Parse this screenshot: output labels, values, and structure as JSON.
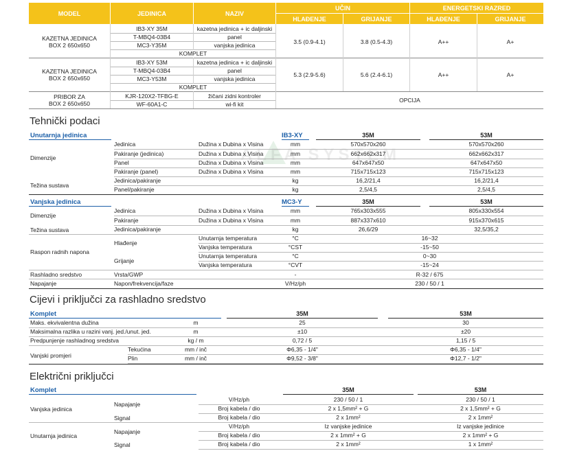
{
  "top": {
    "headers": {
      "model": "MODEL",
      "jedinica": "JEDINICA",
      "naziv": "NAZIV",
      "ucin": "UČIN",
      "energetski": "ENERGETSKI RAZRED",
      "hladenje": "HLAĐENJE",
      "grijanje": "GRIJANJE",
      "e_hladenje": "HLAĐENJE",
      "e_grijanje": "GRIJANJE"
    },
    "rows": [
      {
        "model1": "KAZETNA JEDINICA",
        "model2": "BOX 2 650x650",
        "units": [
          "IB3-XY 35M",
          "T-MBQ4-03B4",
          "MC3-Y35M"
        ],
        "names": [
          "kazetna jedinica + ic daljinski",
          "panel",
          "vanjska jedinica"
        ],
        "cool": "3.5 (0.9-4.1)",
        "heat": "3.8 (0.5-4.3)",
        "ecool": "A++",
        "eheat": "A+",
        "komplet": "KOMPLET"
      },
      {
        "model1": "KAZETNA JEDINICA",
        "model2": "BOX 2 650x650",
        "units": [
          "IB3-XY 53M",
          "T-MBQ4-03B4",
          "MC3-Y53M"
        ],
        "names": [
          "kazetna jedinica + ic daljinski",
          "panel",
          "vanjska jedinica"
        ],
        "cool": "5.3 (2.9-5.6)",
        "heat": "5.6 (2.4-6.1)",
        "ecool": "A++",
        "eheat": "A+",
        "komplet": "KOMPLET"
      }
    ],
    "pribor": {
      "l1": "PRIBOR ZA",
      "l2": "BOX 2 650x650",
      "u1": "KJR-120X2-TFBG-E",
      "u2": "WF-60A1-C",
      "n1": "žičani zidni kontroler",
      "n2": "wi-fi kit",
      "opt": "OPCIJA"
    }
  },
  "tech": {
    "title": "Tehnički podaci",
    "indoor": {
      "label": "Unutarnja jedinica",
      "model": "IB3-XY",
      "c35": "35M",
      "c53": "53M",
      "dim": "Dimenzije",
      "tez": "Težina sustava",
      "rows": [
        {
          "a": "Jedinica",
          "b": "Dužina x Dubina x Visina",
          "u": "mm",
          "v35": "570x570x260",
          "v53": "570x570x260"
        },
        {
          "a": "Pakiranje (jedinica)",
          "b": "Dužina x Dubina x Visina",
          "u": "mm",
          "v35": "662x662x317",
          "v53": "662x662x317"
        },
        {
          "a": "Panel",
          "b": "Dužina x Dubina x Visina",
          "u": "mm",
          "v35": "647x647x50",
          "v53": "647x647x50"
        },
        {
          "a": "Pakiranje (panel)",
          "b": "Dužina x Dubina x Visina",
          "u": "mm",
          "v35": "715x715x123",
          "v53": "715x715x123"
        },
        {
          "a": "Jedinica/pakiranje",
          "b": "",
          "u": "kg",
          "v35": "16,2/21,4",
          "v53": "16,2/21,4"
        },
        {
          "a": "Panel/pakiranje",
          "b": "",
          "u": "kg",
          "v35": "2,5/4,5",
          "v53": "2,5/4,5"
        }
      ]
    },
    "outdoor": {
      "label": "Vanjska jedinica",
      "model": "MC3-Y",
      "c35": "35M",
      "c53": "53M",
      "dim": "Dimenzije",
      "tez": "Težina sustava",
      "raspon": "Raspon radnih napona",
      "hl": "Hlađenje",
      "gr": "Grijanje",
      "rash": "Rashladno sredstvo",
      "nap": "Napajanje",
      "rows": [
        {
          "a": "Jedinica",
          "b": "Dužina x Dubina x Visina",
          "u": "mm",
          "v35": "765x303x555",
          "v53": "805x330x554"
        },
        {
          "a": "Pakiranje",
          "b": "Dužina x Dubina x Visina",
          "u": "mm",
          "v35": "887x337x610",
          "v53": "915x370x615"
        },
        {
          "a": "Jedinica/pakiranje",
          "b": "",
          "u": "kg",
          "v35": "26,6/29",
          "v53": "32,5/35,2"
        }
      ],
      "ranges": [
        {
          "b": "Unutarnja temperatura",
          "u": "°C",
          "v": "16~32"
        },
        {
          "b": "Vanjska temperatura",
          "u": "°CST",
          "v": "-15~50"
        },
        {
          "b": "Unutarnja temperatura",
          "u": "°C",
          "v": "0~30"
        },
        {
          "b": "Vanjska temperatura",
          "u": "°CVT",
          "v": "-15~24"
        }
      ],
      "rash_a": "Vrsta/GWP",
      "rash_u": "-",
      "rash_v": "R-32 / 675",
      "nap_a": "Napon/frekvencija/faze",
      "nap_u": "V/Hz/ph",
      "nap_v": "230 / 50 / 1"
    }
  },
  "pipes": {
    "title": "Cijevi i priključci za rashladno sredstvo",
    "label": "Komplet",
    "c35": "35M",
    "c53": "53M",
    "rows": [
      {
        "a": "Maks. ekvivalentna dužina",
        "s": "",
        "u": "m",
        "v35": "25",
        "v53": "30"
      },
      {
        "a": "Maksimalna razlika u razini vanj. jed./unut. jed.",
        "s": "",
        "u": "m",
        "v35": "±10",
        "v53": "±20"
      },
      {
        "a": "Predpunjenje rashladnog sredstva",
        "s": "",
        "u": "kg / m",
        "v35": "0,72 / 5",
        "v53": "1,15 / 5"
      },
      {
        "a": "",
        "s": "Tekućina",
        "u": "mm / inč",
        "v35": "Φ6,35 - 1/4\"",
        "v53": "Φ6,35 - 1/4\""
      },
      {
        "a": "",
        "s": "Plin",
        "u": "mm / inč",
        "v35": "Φ9,52 - 3/8\"",
        "v53": "Φ12,7 - 1/2\""
      }
    ],
    "vp": "Vanjski promjeri"
  },
  "elec": {
    "title": "Električni priključci",
    "label": "Komplet",
    "c35": "35M",
    "c53": "53M",
    "vanj": "Vanjska jedinica",
    "unut": "Unutarnja jedinica",
    "nap": "Napajanje",
    "sig": "Signal",
    "rows": [
      {
        "u": "V/Hz/ph",
        "v35": "230 / 50 / 1",
        "v53": "230 / 50 / 1"
      },
      {
        "u": "Broj kabela / dio",
        "v35": "2 x 1,5mm² + G",
        "v53": "2 x 1,5mm² + G"
      },
      {
        "u": "Broj kabela / dio",
        "v35": "2 x 1mm²",
        "v53": "2 x 1mm²"
      },
      {
        "u": "V/Hz/ph",
        "v35": "Iz vanjske jedinice",
        "v53": "Iz vanjske jedinice"
      },
      {
        "u": "Broj kabela / dio",
        "v35": "2 x 1mm² + G",
        "v53": "2 x 1mm² + G"
      },
      {
        "u": "Broj kabela / dio",
        "v35": "2 x 1mm²",
        "v53": "1 x 1mm²"
      }
    ]
  },
  "watermark": "ALFA SYSTEM"
}
